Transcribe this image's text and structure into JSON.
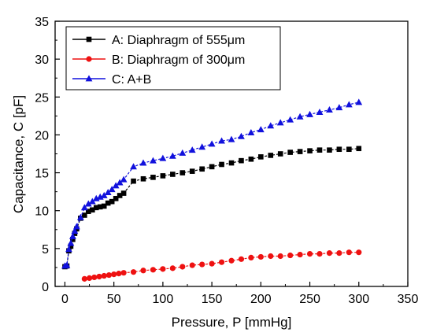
{
  "chart_data": {
    "type": "line",
    "title": "",
    "xlabel": "Pressure, P [mmHg]",
    "ylabel": "Capacitance, C [pF]",
    "xlim": [
      -10,
      350
    ],
    "ylim": [
      0,
      35
    ],
    "xticks": [
      0,
      50,
      100,
      150,
      200,
      250,
      300,
      350
    ],
    "yticks": [
      0,
      5,
      10,
      15,
      20,
      25,
      30,
      35
    ],
    "grid": false,
    "legend_position": "top-left",
    "series": [
      {
        "name": "A: Diaphragm of 555μm",
        "color": "#000000",
        "marker": "square",
        "x": [
          0,
          2,
          4,
          6,
          8,
          10,
          12,
          16,
          20,
          24,
          28,
          32,
          36,
          40,
          44,
          48,
          52,
          56,
          60,
          70,
          80,
          90,
          100,
          110,
          120,
          130,
          140,
          150,
          160,
          170,
          180,
          190,
          200,
          210,
          220,
          230,
          240,
          250,
          260,
          270,
          280,
          290,
          300
        ],
        "y": [
          2.6,
          2.7,
          4.7,
          5.3,
          6.2,
          7.0,
          7.6,
          9.0,
          9.4,
          9.9,
          10.1,
          10.4,
          10.5,
          10.6,
          11.0,
          11.2,
          11.6,
          12.0,
          12.3,
          13.9,
          14.2,
          14.4,
          14.6,
          14.8,
          15.0,
          15.2,
          15.5,
          15.8,
          16.1,
          16.3,
          16.6,
          16.8,
          17.1,
          17.3,
          17.5,
          17.7,
          17.8,
          17.9,
          18.0,
          18.0,
          18.1,
          18.1,
          18.2
        ]
      },
      {
        "name": "B: Diaphragm of 300μm",
        "color": "#ee1111",
        "marker": "circle",
        "x": [
          20,
          25,
          30,
          35,
          40,
          45,
          50,
          55,
          60,
          70,
          80,
          90,
          100,
          110,
          120,
          130,
          140,
          150,
          160,
          170,
          180,
          190,
          200,
          210,
          220,
          230,
          240,
          250,
          260,
          270,
          280,
          290,
          300
        ],
        "y": [
          1.0,
          1.1,
          1.2,
          1.3,
          1.4,
          1.5,
          1.6,
          1.7,
          1.8,
          1.9,
          2.1,
          2.2,
          2.3,
          2.4,
          2.6,
          2.8,
          2.9,
          3.0,
          3.2,
          3.4,
          3.6,
          3.8,
          3.9,
          4.0,
          4.0,
          4.1,
          4.2,
          4.3,
          4.3,
          4.4,
          4.4,
          4.5,
          4.5
        ]
      },
      {
        "name": "C: A+B",
        "color": "#1111dd",
        "marker": "triangle",
        "x": [
          0,
          2,
          4,
          6,
          8,
          10,
          12,
          16,
          20,
          24,
          28,
          32,
          36,
          40,
          44,
          48,
          52,
          56,
          60,
          70,
          80,
          90,
          100,
          110,
          120,
          130,
          140,
          150,
          160,
          170,
          180,
          190,
          200,
          210,
          220,
          230,
          240,
          250,
          260,
          270,
          280,
          290,
          300
        ],
        "y": [
          2.7,
          2.8,
          4.9,
          5.7,
          6.6,
          7.3,
          7.9,
          9.1,
          10.4,
          10.9,
          11.2,
          11.6,
          11.8,
          12.0,
          12.4,
          12.8,
          13.3,
          13.7,
          14.1,
          15.8,
          16.3,
          16.6,
          16.9,
          17.2,
          17.6,
          18.0,
          18.4,
          18.8,
          19.2,
          19.4,
          19.8,
          20.3,
          20.7,
          21.2,
          21.6,
          22.0,
          22.4,
          22.7,
          23.0,
          23.3,
          23.6,
          24.0,
          24.3
        ]
      }
    ]
  }
}
